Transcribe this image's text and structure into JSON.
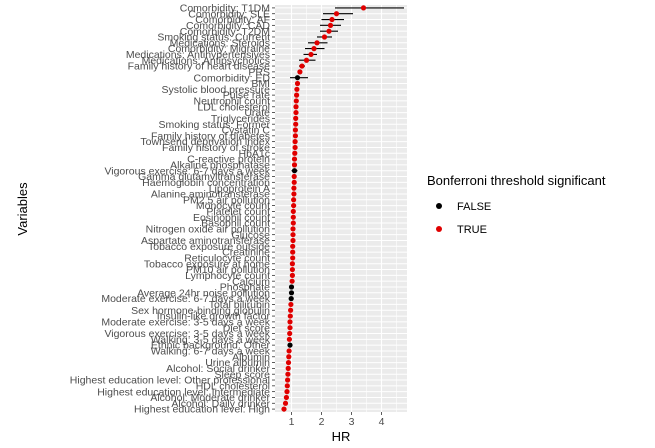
{
  "chart_data": {
    "type": "scatter",
    "xlabel": "HR",
    "ylabel": "Variables",
    "x_ticks": [
      1,
      2,
      3,
      4
    ],
    "xlim": [
      0.45,
      4.85
    ],
    "grid": true,
    "legend": {
      "title": "Bonferroni threshold significant",
      "placement": "right",
      "entries": [
        {
          "label": "FALSE",
          "color": "#000000"
        },
        {
          "label": "TRUE",
          "color": "#e00000"
        }
      ]
    },
    "points": [
      {
        "variable": "Comorbidity: T1DM",
        "hr": 3.4,
        "lo": 2.45,
        "hi": 4.75,
        "significant": true
      },
      {
        "variable": "Comorbidity: SLE",
        "hr": 2.5,
        "lo": 2.05,
        "hi": 3.05,
        "significant": true
      },
      {
        "variable": "Comorbidity: AF",
        "hr": 2.35,
        "lo": 2.0,
        "hi": 2.75,
        "significant": true
      },
      {
        "variable": "Comorbidity: CAD",
        "hr": 2.3,
        "lo": 1.95,
        "hi": 2.65,
        "significant": true
      },
      {
        "variable": "Comorbidity: T2DM",
        "hr": 2.25,
        "lo": 1.95,
        "hi": 2.55,
        "significant": true
      },
      {
        "variable": "Smoking status: Current",
        "hr": 2.1,
        "lo": 1.85,
        "hi": 2.35,
        "significant": true
      },
      {
        "variable": "Medications: Steroids",
        "hr": 1.85,
        "lo": 1.55,
        "hi": 2.2,
        "significant": true
      },
      {
        "variable": "Comorbidity: Migraine",
        "hr": 1.75,
        "lo": 1.45,
        "hi": 2.1,
        "significant": true
      },
      {
        "variable": "Medications: Antihypertensives",
        "hr": 1.65,
        "lo": 1.4,
        "hi": 1.85,
        "significant": true
      },
      {
        "variable": "Medications: Antipsychotics",
        "hr": 1.5,
        "lo": 1.25,
        "hi": 1.8,
        "significant": true
      },
      {
        "variable": "Family history of heart disease",
        "hr": 1.35,
        "lo": 1.25,
        "hi": 1.45,
        "significant": true
      },
      {
        "variable": "PRS",
        "hr": 1.28,
        "lo": 1.22,
        "hi": 1.34,
        "significant": true
      },
      {
        "variable": "Comorbidity: ED",
        "hr": 1.2,
        "lo": 0.95,
        "hi": 1.55,
        "significant": false
      },
      {
        "variable": "BMI",
        "hr": 1.2,
        "lo": 1.15,
        "hi": 1.25,
        "significant": true
      },
      {
        "variable": "Systolic blood pressure",
        "hr": 1.18,
        "lo": 1.13,
        "hi": 1.23,
        "significant": true
      },
      {
        "variable": "Pulse rate",
        "hr": 1.17,
        "lo": 1.13,
        "hi": 1.21,
        "significant": true
      },
      {
        "variable": "Neutrophil count",
        "hr": 1.16,
        "lo": 1.12,
        "hi": 1.2,
        "significant": true
      },
      {
        "variable": "LDL cholesterol",
        "hr": 1.15,
        "lo": 1.11,
        "hi": 1.19,
        "significant": true
      },
      {
        "variable": "Urate",
        "hr": 1.15,
        "lo": 1.11,
        "hi": 1.19,
        "significant": true
      },
      {
        "variable": "Triglycerides",
        "hr": 1.14,
        "lo": 1.1,
        "hi": 1.18,
        "significant": true
      },
      {
        "variable": "Smoking status: Former",
        "hr": 1.14,
        "lo": 1.1,
        "hi": 1.18,
        "significant": true
      },
      {
        "variable": "Cystatin C",
        "hr": 1.13,
        "lo": 1.09,
        "hi": 1.17,
        "significant": true
      },
      {
        "variable": "Family history of diabetes",
        "hr": 1.13,
        "lo": 1.09,
        "hi": 1.17,
        "significant": true
      },
      {
        "variable": "Townsend deprivation index",
        "hr": 1.12,
        "lo": 1.08,
        "hi": 1.16,
        "significant": true
      },
      {
        "variable": "Family history of stroke",
        "hr": 1.12,
        "lo": 1.08,
        "hi": 1.16,
        "significant": true
      },
      {
        "variable": "HbA1c",
        "hr": 1.11,
        "lo": 1.07,
        "hi": 1.15,
        "significant": true
      },
      {
        "variable": "C-reactive protein",
        "hr": 1.1,
        "lo": 1.06,
        "hi": 1.14,
        "significant": true
      },
      {
        "variable": "Alkaline phosphatase",
        "hr": 1.1,
        "lo": 1.06,
        "hi": 1.14,
        "significant": true
      },
      {
        "variable": "Vigorous exercise: 6-7 days a week",
        "hr": 1.1,
        "lo": 1.0,
        "hi": 1.2,
        "significant": false
      },
      {
        "variable": "Gamma glutamyltransferase",
        "hr": 1.09,
        "lo": 1.05,
        "hi": 1.13,
        "significant": true
      },
      {
        "variable": "Haemoglobin concentration",
        "hr": 1.09,
        "lo": 1.05,
        "hi": 1.13,
        "significant": true
      },
      {
        "variable": "Lipoprotein A",
        "hr": 1.08,
        "lo": 1.04,
        "hi": 1.12,
        "significant": true
      },
      {
        "variable": "Alanine aminotransferase",
        "hr": 1.08,
        "lo": 1.04,
        "hi": 1.12,
        "significant": true
      },
      {
        "variable": "PM2.5 air pollution",
        "hr": 1.07,
        "lo": 1.03,
        "hi": 1.11,
        "significant": true
      },
      {
        "variable": "Monocyte count",
        "hr": 1.07,
        "lo": 1.03,
        "hi": 1.11,
        "significant": true
      },
      {
        "variable": "Platelet count",
        "hr": 1.06,
        "lo": 1.02,
        "hi": 1.1,
        "significant": true
      },
      {
        "variable": "Eosinophil count",
        "hr": 1.06,
        "lo": 1.02,
        "hi": 1.1,
        "significant": true
      },
      {
        "variable": "Basophil count",
        "hr": 1.06,
        "lo": 1.02,
        "hi": 1.1,
        "significant": true
      },
      {
        "variable": "Nitrogen oxide air pollution",
        "hr": 1.05,
        "lo": 1.01,
        "hi": 1.09,
        "significant": true
      },
      {
        "variable": "Glucose",
        "hr": 1.05,
        "lo": 1.01,
        "hi": 1.09,
        "significant": true
      },
      {
        "variable": "Aspartate aminotransferase",
        "hr": 1.05,
        "lo": 1.01,
        "hi": 1.09,
        "significant": true
      },
      {
        "variable": "Tobacco exposure outside",
        "hr": 1.04,
        "lo": 1.0,
        "hi": 1.08,
        "significant": true
      },
      {
        "variable": "Creatinine",
        "hr": 1.04,
        "lo": 1.0,
        "hi": 1.08,
        "significant": true
      },
      {
        "variable": "Reticulocyte count",
        "hr": 1.04,
        "lo": 1.0,
        "hi": 1.08,
        "significant": true
      },
      {
        "variable": "Tobacco exposure at home",
        "hr": 1.03,
        "lo": 0.99,
        "hi": 1.07,
        "significant": true
      },
      {
        "variable": "PM10 air pollution",
        "hr": 1.03,
        "lo": 0.99,
        "hi": 1.07,
        "significant": true
      },
      {
        "variable": "Lymphocyte count",
        "hr": 1.03,
        "lo": 0.99,
        "hi": 1.07,
        "significant": true
      },
      {
        "variable": "Calcium",
        "hr": 1.02,
        "lo": 0.98,
        "hi": 1.06,
        "significant": true
      },
      {
        "variable": "Phosphate",
        "hr": 1.0,
        "lo": 0.97,
        "hi": 1.03,
        "significant": false
      },
      {
        "variable": "Average 24hr noise pollution",
        "hr": 1.0,
        "lo": 0.97,
        "hi": 1.03,
        "significant": false
      },
      {
        "variable": "Moderate exercise: 6-7 days a week",
        "hr": 0.99,
        "lo": 0.96,
        "hi": 1.02,
        "significant": false
      },
      {
        "variable": "Total bilirubin",
        "hr": 0.98,
        "lo": 0.95,
        "hi": 1.01,
        "significant": true
      },
      {
        "variable": "Sex hormone-binding globulin",
        "hr": 0.97,
        "lo": 0.94,
        "hi": 1.0,
        "significant": true
      },
      {
        "variable": "Insulin-like growth factor",
        "hr": 0.96,
        "lo": 0.93,
        "hi": 0.99,
        "significant": true
      },
      {
        "variable": "Moderate exercise: 3-5 days a week",
        "hr": 0.95,
        "lo": 0.92,
        "hi": 0.98,
        "significant": true
      },
      {
        "variable": "Diet score",
        "hr": 0.95,
        "lo": 0.92,
        "hi": 0.98,
        "significant": true
      },
      {
        "variable": "Vigorous exercise: 3-5 days a week",
        "hr": 0.94,
        "lo": 0.91,
        "hi": 0.97,
        "significant": true
      },
      {
        "variable": "Walking: 3-5 days a week",
        "hr": 0.93,
        "lo": 0.9,
        "hi": 0.96,
        "significant": true
      },
      {
        "variable": "Ethnic background: Other",
        "hr": 0.95,
        "lo": 0.88,
        "hi": 1.02,
        "significant": false
      },
      {
        "variable": "Walking: 6-7 days a week",
        "hr": 0.92,
        "lo": 0.89,
        "hi": 0.95,
        "significant": true
      },
      {
        "variable": "Albumin",
        "hr": 0.91,
        "lo": 0.88,
        "hi": 0.94,
        "significant": true
      },
      {
        "variable": "Urine albumin",
        "hr": 0.9,
        "lo": 0.87,
        "hi": 0.93,
        "significant": true
      },
      {
        "variable": "Alcohol: Social drinker",
        "hr": 0.89,
        "lo": 0.86,
        "hi": 0.92,
        "significant": true
      },
      {
        "variable": "Sleep score",
        "hr": 0.88,
        "lo": 0.85,
        "hi": 0.91,
        "significant": true
      },
      {
        "variable": "Highest education level: Other professional",
        "hr": 0.87,
        "lo": 0.84,
        "hi": 0.9,
        "significant": true
      },
      {
        "variable": "HDL cholesterol",
        "hr": 0.86,
        "lo": 0.83,
        "hi": 0.89,
        "significant": true
      },
      {
        "variable": "Highest education level: Intermediate",
        "hr": 0.85,
        "lo": 0.82,
        "hi": 0.88,
        "significant": true
      },
      {
        "variable": "Alcohol: Moderate drinker",
        "hr": 0.83,
        "lo": 0.8,
        "hi": 0.86,
        "significant": true
      },
      {
        "variable": "Alcohol: Daily drinker",
        "hr": 0.8,
        "lo": 0.77,
        "hi": 0.83,
        "significant": true
      },
      {
        "variable": "Highest education level: High",
        "hr": 0.75,
        "lo": 0.72,
        "hi": 0.78,
        "significant": true
      }
    ]
  }
}
